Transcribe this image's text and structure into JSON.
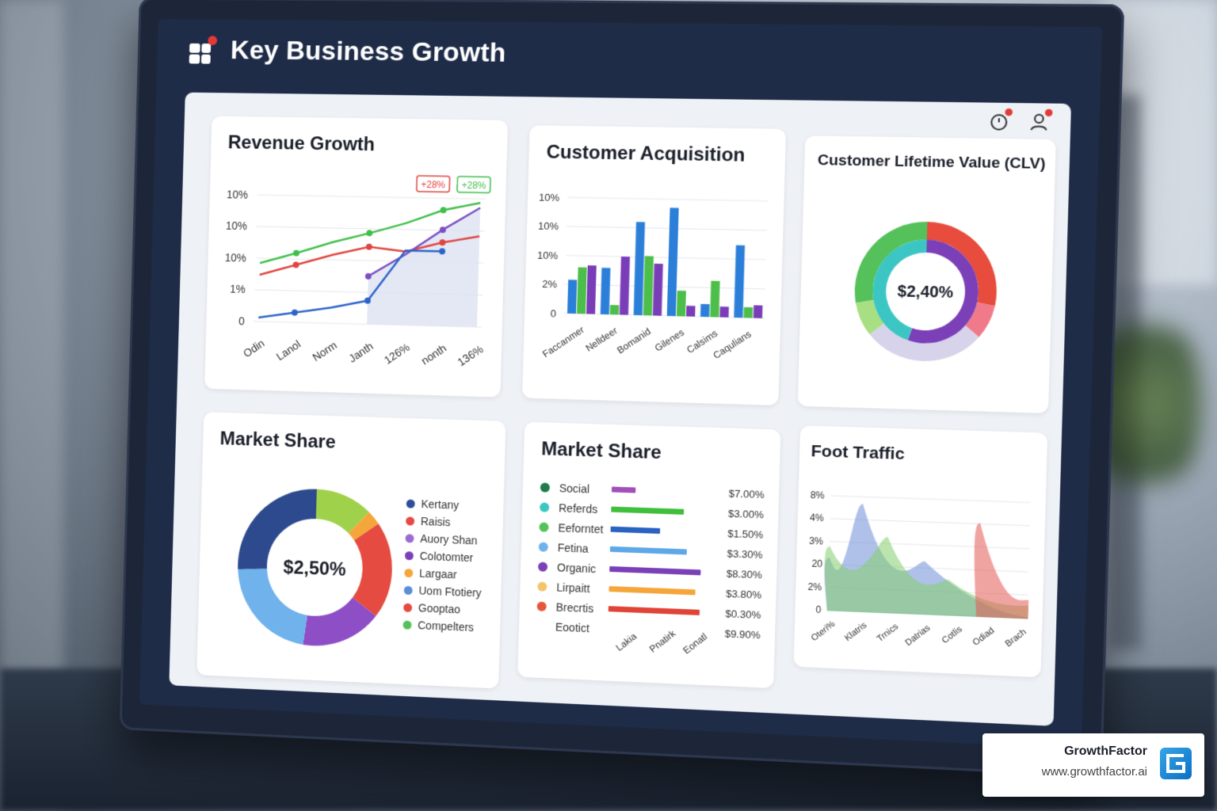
{
  "header": {
    "title": "Key Business Growth"
  },
  "top_icons": [
    "timer-icon",
    "user-icon"
  ],
  "cards": {
    "revenue": {
      "title": "Revenue Growth",
      "badges": [
        "+28%",
        "+28%"
      ],
      "chart_data": {
        "type": "line",
        "categories": [
          "Odin",
          "Lanol",
          "Norm",
          "Janth",
          "126%",
          "nonth",
          "136%"
        ],
        "yticks": [
          "10%",
          "10%",
          "10%",
          "1%",
          "0"
        ],
        "series": [
          {
            "color": "#3fbf4a",
            "values": [
              6.0,
              7.1,
              8.3,
              9.3,
              10.4,
              11.8,
              12.6
            ]
          },
          {
            "color": "#e0443e",
            "values": [
              4.8,
              5.9,
              7.0,
              7.9,
              7.5,
              8.5,
              9.2
            ]
          },
          {
            "color": "#7b4fc2",
            "values": [
              null,
              null,
              null,
              4.9,
              7.2,
              9.8,
              12.1
            ]
          },
          {
            "color": "#2c63c9",
            "values": [
              0.4,
              1.0,
              1.6,
              2.4,
              7.6,
              7.6,
              null
            ]
          }
        ],
        "ylim": [
          0,
          13
        ]
      }
    },
    "acquisition": {
      "title": "Customer Acquisition",
      "chart_data": {
        "type": "bar",
        "categories": [
          "Faccanmer",
          "Nelldeer",
          "Bomanid",
          "Gilenes",
          "Calsims",
          "Caqulians"
        ],
        "yticks": [
          "10%",
          "10%",
          "10%",
          "2%",
          "0"
        ],
        "series": [
          {
            "name": "blue",
            "color": "#2b7fd8",
            "values": [
              3.2,
              4.4,
              8.8,
              10.2,
              1.2,
              6.8
            ]
          },
          {
            "name": "green",
            "color": "#4cbe4a",
            "values": [
              4.4,
              0.9,
              5.6,
              2.4,
              3.4,
              1.0
            ]
          },
          {
            "name": "purple",
            "color": "#7a3db8",
            "values": [
              4.6,
              5.5,
              4.9,
              1.0,
              1.0,
              1.2
            ]
          }
        ],
        "ylim": [
          0,
          11
        ]
      }
    },
    "clv": {
      "title": "Customer Lifetime Value (CLV)",
      "center_label": "$2,40%",
      "chart_data": {
        "type": "pie",
        "outer": [
          {
            "color": "#e74c3c",
            "value": 28
          },
          {
            "color": "#f07a8a",
            "value": 8
          },
          {
            "color": "#d7d3ea",
            "value": 28
          },
          {
            "color": "#a9df83",
            "value": 8
          },
          {
            "color": "#55c15a",
            "value": 28
          }
        ],
        "inner": [
          {
            "color": "#7b3fb8",
            "value": 55
          },
          {
            "color": "#3cc6c3",
            "value": 45
          }
        ]
      }
    },
    "market_donut": {
      "title": "Market Share",
      "center_label": "$2,50%",
      "chart_data": {
        "type": "pie",
        "slices": [
          {
            "color": "#9fd14a",
            "value": 12
          },
          {
            "color": "#f5a63a",
            "value": 3
          },
          {
            "color": "#e54b40",
            "value": 20
          },
          {
            "color": "#8e4ec6",
            "value": 17
          },
          {
            "color": "#6fb2ec",
            "value": 22
          },
          {
            "color": "#2e4a8f",
            "value": 26
          }
        ]
      },
      "legend": [
        {
          "label": "Kertany",
          "color": "#2c4d9a"
        },
        {
          "label": "Raisis",
          "color": "#e54b40"
        },
        {
          "label": "Auory Shan",
          "color": "#9b6cd1"
        },
        {
          "label": "Colotomter",
          "color": "#7b3fb8"
        },
        {
          "label": "Largaar",
          "color": "#f5a63a"
        },
        {
          "label": "Uom Ftotiery",
          "color": "#5a8fd8"
        },
        {
          "label": "Gooptao",
          "color": "#e54b40"
        },
        {
          "label": "Compelters",
          "color": "#55c15a"
        }
      ]
    },
    "market_bars": {
      "title": "Market Share",
      "rows": [
        {
          "label": "Social",
          "dot": "#1f7a4d",
          "bar": "#a150b8",
          "value": "$7.00%",
          "length": 0.25
        },
        {
          "label": "Referds",
          "dot": "#3cc6c3",
          "bar": "#3fbf3c",
          "value": "$3.00%",
          "length": 0.76
        },
        {
          "label": "Eeforntet",
          "dot": "#55c15a",
          "bar": "#2a62c2",
          "value": "$1.50%",
          "length": 0.52
        },
        {
          "label": "Fetina",
          "dot": "#6fb2ec",
          "bar": "#5ea8e8",
          "value": "$3.30%",
          "length": 0.8
        },
        {
          "label": "Organic",
          "dot": "#7b3fb8",
          "bar": "#7b3fb8",
          "value": "$8.30%",
          "length": 0.95
        },
        {
          "label": "Lirpaitt",
          "dot": "#f4c46b",
          "bar": "#f5a63a",
          "value": "$3.80%",
          "length": 0.9
        },
        {
          "label": "Brecrtis",
          "dot": "#e7553b",
          "bar": "#e04436",
          "value": "$0.30%",
          "length": 0.95
        },
        {
          "label": "Eootict",
          "dot": "",
          "bar": "",
          "value": "$9.90%",
          "length": 0
        }
      ],
      "xticks": [
        "Lakia",
        "Pnatirk",
        "Eonatl"
      ]
    },
    "foot_traffic": {
      "title": "Foot Traffic",
      "chart_data": {
        "type": "area",
        "yticks": [
          "8%",
          "4%",
          "3%",
          "20",
          "2%",
          "0"
        ],
        "categories": [
          "Oteri%",
          "Klatris",
          "Trnics",
          "Datrias",
          "Cotlis",
          "Odiad",
          "Brach"
        ],
        "series": [
          {
            "color": "#6f8fd8",
            "peaks": [
              [
                0.0,
                0.45
              ],
              [
                0.16,
                0.93
              ],
              [
                0.48,
                0.45
              ],
              [
                1.0,
                0.0
              ]
            ]
          },
          {
            "color": "#86cf6d",
            "peaks": [
              [
                0.0,
                0.55
              ],
              [
                0.29,
                0.65
              ],
              [
                0.6,
                0.3
              ],
              [
                1.0,
                0.1
              ]
            ]
          },
          {
            "color": "#e55a55",
            "peaks": [
              [
                0.75,
                0.8
              ],
              [
                1.0,
                0.15
              ]
            ]
          }
        ]
      }
    }
  },
  "brand": {
    "name": "GrowthFactor",
    "url": "www.growthfactor.ai"
  }
}
